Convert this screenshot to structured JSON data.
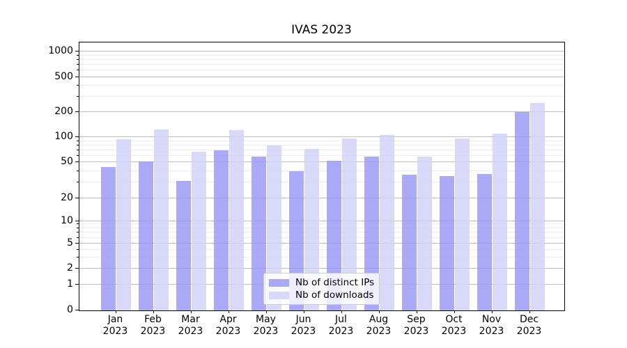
{
  "title": "IVAS 2023",
  "y_axis": {
    "tick_labels": [
      "1000",
      "500",
      "200",
      "100",
      "50",
      "20",
      "10",
      "5",
      "2",
      "1",
      "0"
    ]
  },
  "x_axis": {
    "year": "2023",
    "months": [
      "Jan",
      "Feb",
      "Mar",
      "Apr",
      "May",
      "Jun",
      "Jul",
      "Aug",
      "Sep",
      "Oct",
      "Nov",
      "Dec"
    ]
  },
  "legend": {
    "items": [
      "Nb of distinct IPs",
      "Nb of downloads"
    ]
  },
  "colors": {
    "distinct_ips": "#9797f6",
    "downloads": "#d1d1f9",
    "grid_major": "#bdbdbd",
    "grid_minor": "#ededed",
    "spine": "#000000",
    "legend_border": "#cccccc"
  },
  "chart_data": {
    "type": "bar",
    "title": "IVAS 2023",
    "categories": [
      "Jan 2023",
      "Feb 2023",
      "Mar 2023",
      "Apr 2023",
      "May 2023",
      "Jun 2023",
      "Jul 2023",
      "Aug 2023",
      "Sep 2023",
      "Oct 2023",
      "Nov 2023",
      "Dec 2023"
    ],
    "series": [
      {
        "name": "Nb of distinct IPs",
        "color": "#9797f6",
        "values": [
          44,
          51,
          31,
          69,
          58,
          40,
          52,
          58,
          36,
          35,
          37,
          200
        ]
      },
      {
        "name": "Nb of downloads",
        "color": "#d1d1f9",
        "values": [
          95,
          125,
          67,
          123,
          80,
          72,
          97,
          107,
          58,
          97,
          110,
          255
        ]
      }
    ],
    "xlabel": "",
    "ylabel": "",
    "yscale": "symlog-like (log above 1, linear 0-1)",
    "yticks": [
      0,
      1,
      2,
      5,
      10,
      20,
      50,
      100,
      200,
      500,
      1000
    ],
    "ylim": [
      0,
      1250
    ],
    "grid": "both",
    "legend_position": "lower center"
  }
}
